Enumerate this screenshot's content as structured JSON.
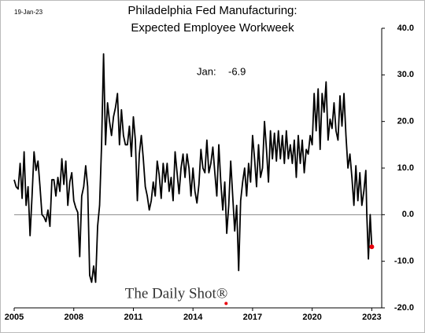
{
  "chart_data": {
    "type": "line",
    "title": "Philadelphia Fed Manufacturing:",
    "subtitle": "Expected Employee Workweek",
    "date": "19-Jan-23",
    "watermark": "The Daily Shot®",
    "annotation": {
      "label": "Jan:",
      "value": -6.9
    },
    "color": "#000000",
    "highlight_color": "#e8000b",
    "zero_line": true,
    "grid": false,
    "x": [
      2005.0,
      2005.1,
      2005.2,
      2005.3,
      2005.4,
      2005.5,
      2005.6,
      2005.7,
      2005.8,
      2005.9,
      2006.0,
      2006.1,
      2006.2,
      2006.3,
      2006.4,
      2006.5,
      2006.6,
      2006.7,
      2006.8,
      2006.9,
      2007.0,
      2007.1,
      2007.2,
      2007.3,
      2007.4,
      2007.5,
      2007.6,
      2007.7,
      2007.8,
      2007.9,
      2008.0,
      2008.1,
      2008.2,
      2008.3,
      2008.4,
      2008.5,
      2008.6,
      2008.7,
      2008.8,
      2008.9,
      2009.0,
      2009.1,
      2009.2,
      2009.3,
      2009.4,
      2009.5,
      2009.6,
      2009.7,
      2009.8,
      2009.9,
      2010.0,
      2010.1,
      2010.2,
      2010.3,
      2010.4,
      2010.5,
      2010.6,
      2010.7,
      2010.8,
      2010.9,
      2011.0,
      2011.1,
      2011.2,
      2011.3,
      2011.4,
      2011.5,
      2011.6,
      2011.7,
      2011.8,
      2011.9,
      2012.0,
      2012.1,
      2012.2,
      2012.3,
      2012.4,
      2012.5,
      2012.6,
      2012.7,
      2012.8,
      2012.9,
      2013.0,
      2013.1,
      2013.2,
      2013.3,
      2013.4,
      2013.5,
      2013.6,
      2013.7,
      2013.8,
      2013.9,
      2014.0,
      2014.1,
      2014.2,
      2014.3,
      2014.4,
      2014.5,
      2014.6,
      2014.7,
      2014.8,
      2014.9,
      2015.0,
      2015.1,
      2015.2,
      2015.3,
      2015.4,
      2015.5,
      2015.6,
      2015.7,
      2015.8,
      2015.9,
      2016.0,
      2016.1,
      2016.2,
      2016.3,
      2016.4,
      2016.5,
      2016.6,
      2016.7,
      2016.8,
      2016.9,
      2017.0,
      2017.1,
      2017.2,
      2017.3,
      2017.4,
      2017.5,
      2017.6,
      2017.7,
      2017.8,
      2017.9,
      2018.0,
      2018.1,
      2018.2,
      2018.3,
      2018.4,
      2018.5,
      2018.6,
      2018.7,
      2018.8,
      2018.9,
      2019.0,
      2019.1,
      2019.2,
      2019.3,
      2019.4,
      2019.5,
      2019.6,
      2019.7,
      2019.8,
      2019.9,
      2020.0,
      2020.1,
      2020.2,
      2020.3,
      2020.4,
      2020.5,
      2020.6,
      2020.7,
      2020.8,
      2020.9,
      2021.0,
      2021.1,
      2021.2,
      2021.3,
      2021.4,
      2021.5,
      2021.6,
      2021.7,
      2021.8,
      2021.9,
      2022.0,
      2022.1,
      2022.2,
      2022.3,
      2022.4,
      2022.5,
      2022.6,
      2022.7,
      2022.75,
      2022.83,
      2022.92,
      2023.0
    ],
    "values": [
      7.5,
      6,
      5.5,
      11,
      3.5,
      13.5,
      2,
      6,
      -4.5,
      4,
      13.5,
      9.5,
      11.5,
      6,
      0,
      -0.5,
      -1.5,
      1,
      -2.5,
      7.5,
      7.5,
      4,
      8,
      5,
      12,
      6.5,
      11.5,
      2,
      7,
      9,
      3,
      1.5,
      0.5,
      -9,
      4,
      6,
      10.5,
      6,
      -13,
      -14.5,
      -11,
      -14.5,
      -2.5,
      2,
      15,
      34.5,
      15,
      24,
      20,
      17,
      21,
      23,
      26,
      15,
      22.5,
      17,
      15,
      15,
      19,
      12.5,
      21,
      16,
      3,
      13,
      17,
      12,
      6,
      4,
      1,
      3,
      7,
      4,
      11.5,
      8.5,
      3.5,
      11,
      7,
      11,
      5,
      8,
      3,
      13.5,
      9,
      4.5,
      10,
      13,
      8,
      13,
      10,
      4,
      10,
      5,
      2.5,
      6.5,
      14,
      10,
      9,
      16,
      9,
      11,
      14.5,
      9,
      4,
      15,
      7,
      1,
      7,
      -4,
      2,
      11.5,
      4,
      -3.5,
      2,
      -12,
      3,
      7,
      10,
      4,
      11,
      7,
      17,
      12,
      6,
      15,
      8,
      10,
      20,
      14,
      7,
      18,
      12,
      17.5,
      11.5,
      18,
      12,
      17,
      11,
      18,
      12,
      15,
      11,
      16,
      8,
      17,
      11,
      16,
      9,
      14,
      13,
      17,
      15,
      26,
      18,
      27,
      14,
      26,
      22,
      28.5,
      16,
      20.5,
      18.5,
      24,
      18,
      16,
      25.5,
      19,
      26,
      17,
      10,
      13,
      8,
      2,
      10.5,
      3,
      9,
      2,
      5,
      9.5,
      0,
      -9.5,
      0,
      -6.9
    ],
    "xlim": [
      2005,
      2023.5
    ],
    "xticks": [
      2005,
      2008,
      2011,
      2014,
      2017,
      2020,
      2023
    ],
    "ylim": [
      -20,
      40
    ],
    "yticks": [
      {
        "value": 40,
        "label": "40.0"
      },
      {
        "value": 30,
        "label": "30.0"
      },
      {
        "value": 20,
        "label": "20.0"
      },
      {
        "value": 10,
        "label": "10.0"
      },
      {
        "value": 0,
        "label": "0.0"
      },
      {
        "value": -10,
        "label": "-10.0"
      },
      {
        "value": -20,
        "label": "-20.0"
      }
    ]
  }
}
